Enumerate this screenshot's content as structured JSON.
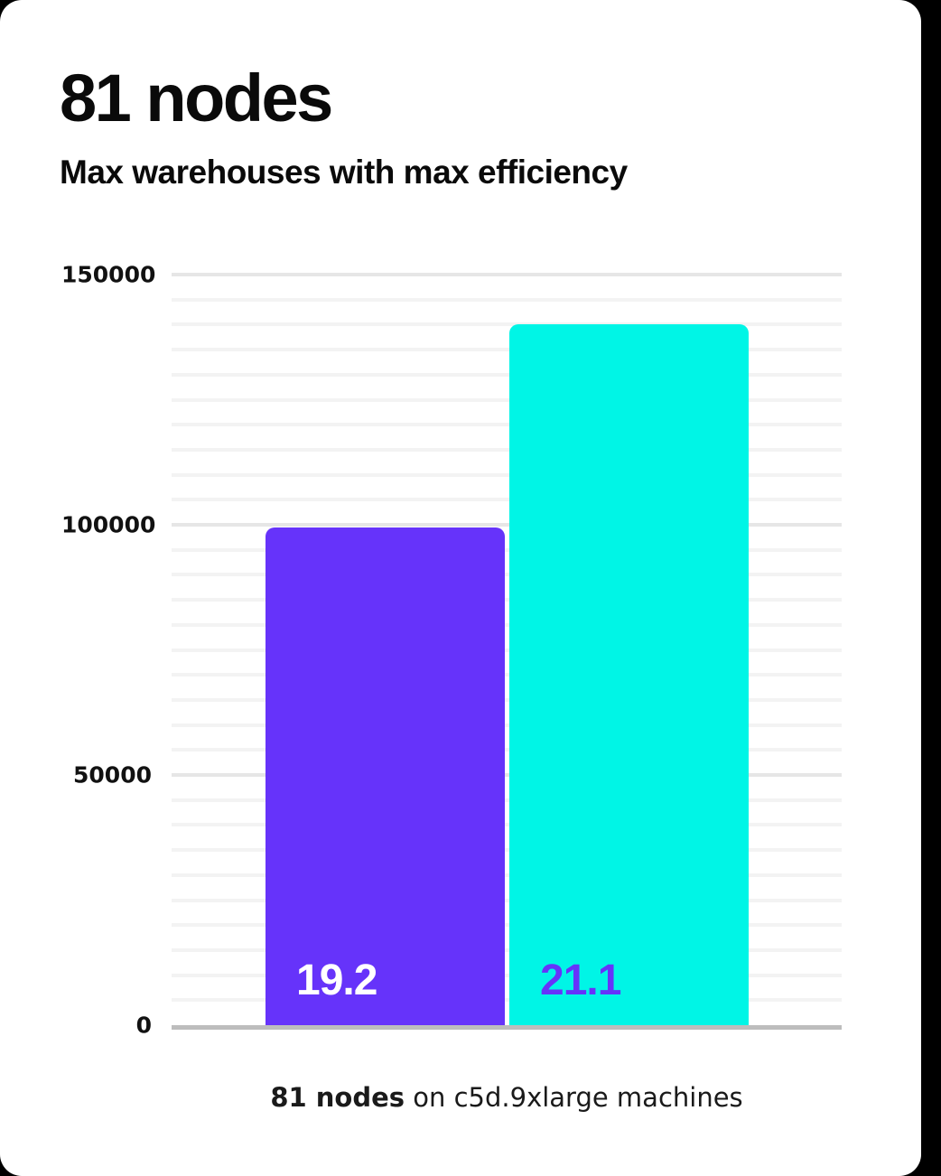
{
  "chart_data": {
    "type": "bar",
    "title": "81 nodes",
    "subtitle": "Max warehouses with max efficiency",
    "caption": {
      "bold": "81 nodes",
      "rest": " on c5d.9xlarge machines"
    },
    "bars": [
      {
        "label": "19.2",
        "value": 99500,
        "color": "#6633fa",
        "label_color": "#ffffff"
      },
      {
        "label": "21.1",
        "value": 140000,
        "color": "#00f5e6",
        "label_color": "#6633fa"
      }
    ],
    "xlabel": "",
    "ylabel": "",
    "ylim": [
      0,
      150000
    ],
    "yticks": [
      0,
      50000,
      100000,
      150000
    ],
    "minor_gridline_step": 5000,
    "grid": true,
    "legend": false,
    "colors": {
      "bar_purple": "#6633fa",
      "bar_cyan": "#00f5e6",
      "axis_line": "#bdbdbd",
      "major_gridline": "#e6e6e6",
      "minor_gridline": "#f3f3f3",
      "text": "#0a0a0a"
    }
  }
}
